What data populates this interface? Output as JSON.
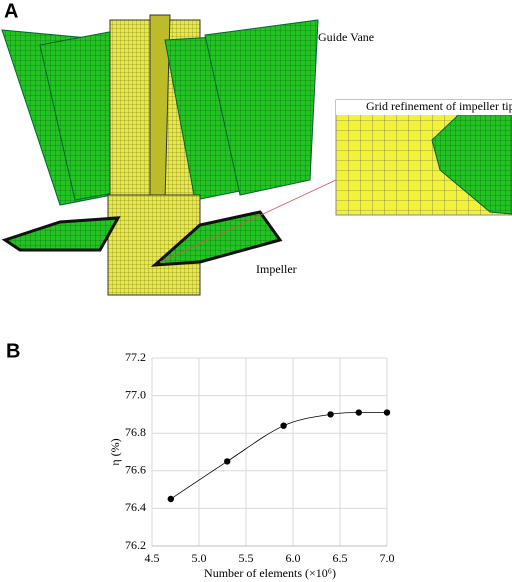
{
  "figure_a": {
    "label": "A",
    "guide_vane": "Guide Vane",
    "inset_title": "Grid refinement of impeller tip",
    "impeller": "Impeller"
  },
  "chart_data": {
    "type": "line",
    "panel_label": "B",
    "x_label": "Number of elements (×10⁶)",
    "y_label": "η (%)",
    "x": [
      4.7,
      5.3,
      5.9,
      6.4,
      6.7,
      7.0
    ],
    "series": [
      {
        "color": "#000000",
        "values": [
          76.45,
          76.65,
          76.84,
          76.9,
          76.91,
          76.91
        ]
      }
    ],
    "xlim": [
      4.5,
      7.0
    ],
    "xticks": [
      4.5,
      {
        "value": 5.0,
        "label": "5.0"
      },
      5.5,
      {
        "value": 6.0,
        "label": "6.0"
      },
      6.5,
      {
        "value": 7.0,
        "label": "7.0"
      }
    ],
    "ylim": [
      76.2,
      77.2
    ],
    "yticks": [
      76.2,
      76.4,
      76.6,
      76.8,
      {
        "value": 77.0,
        "label": "77.0"
      },
      77.2
    ],
    "grid": true
  }
}
